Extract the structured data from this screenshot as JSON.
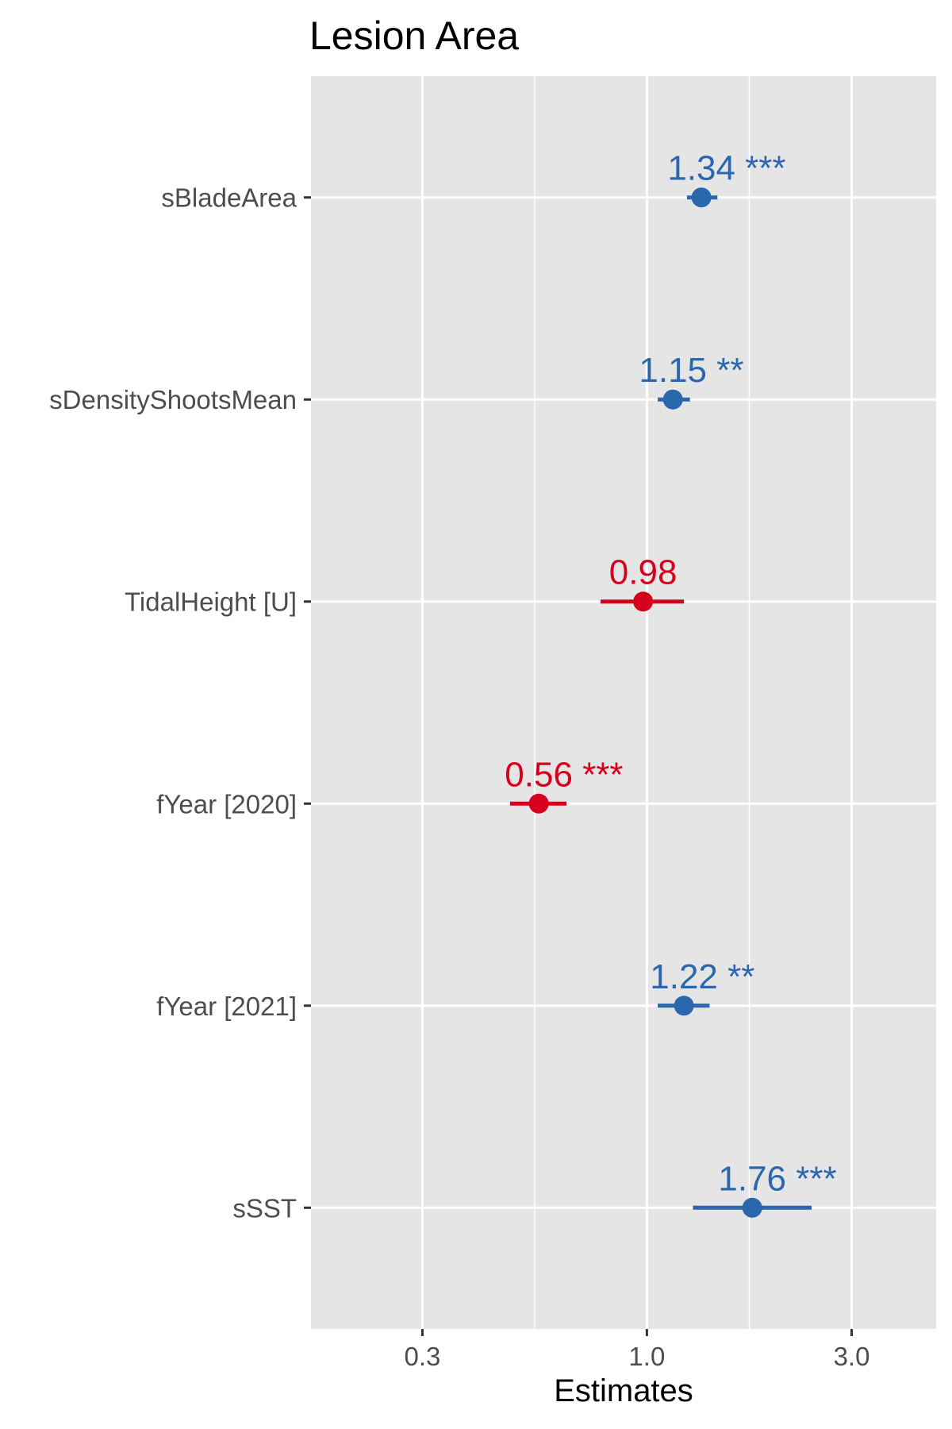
{
  "chart_data": {
    "type": "scatter",
    "subtype": "forest-plot",
    "title": "Lesion Area",
    "xlabel": "Estimates",
    "ylabel": "",
    "x_scale": "log",
    "xlim": [
      0.165,
      4.72
    ],
    "x_ticks": [
      0.3,
      1.0,
      3.0
    ],
    "x_tick_labels": [
      "0.3",
      "1.0",
      "3.0"
    ],
    "grid": true,
    "legend": "none",
    "colors": {
      "positive": "#2b67ac",
      "negative": "#d6001c"
    },
    "series": [
      {
        "term": "sBladeArea",
        "estimate": 1.34,
        "ci_low": 1.24,
        "ci_high": 1.46,
        "label": "1.34 ***",
        "direction": "positive"
      },
      {
        "term": "sDensityShootsMean",
        "estimate": 1.15,
        "ci_low": 1.06,
        "ci_high": 1.26,
        "label": "1.15 **",
        "direction": "positive"
      },
      {
        "term": "TidalHeight [U]",
        "estimate": 0.98,
        "ci_low": 0.78,
        "ci_high": 1.22,
        "label": "0.98",
        "direction": "negative"
      },
      {
        "term": "fYear [2020]",
        "estimate": 0.56,
        "ci_low": 0.48,
        "ci_high": 0.65,
        "label": "0.56 ***",
        "direction": "negative"
      },
      {
        "term": "fYear [2021]",
        "estimate": 1.22,
        "ci_low": 1.06,
        "ci_high": 1.4,
        "label": "1.22 **",
        "direction": "positive"
      },
      {
        "term": "sSST",
        "estimate": 1.76,
        "ci_low": 1.28,
        "ci_high": 2.42,
        "label": "1.76 ***",
        "direction": "positive"
      }
    ]
  }
}
